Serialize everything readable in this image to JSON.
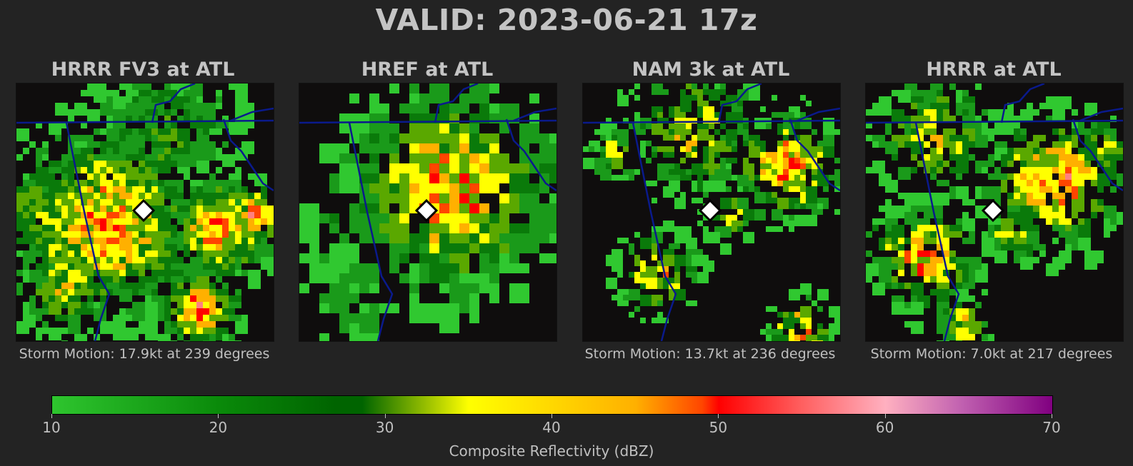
{
  "title": "VALID: 2023-06-21 17z",
  "panels": [
    {
      "title": "HRRR FV3 at ATL",
      "motion": "Storm Motion: 17.9kt at 239 degrees",
      "coverage": "widespread-strong"
    },
    {
      "title": "HREF at ATL",
      "motion": "",
      "coverage": "widespread-weak"
    },
    {
      "title": "NAM 3k at ATL",
      "motion": "Storm Motion: 13.7kt at 236 degrees",
      "coverage": "scattered"
    },
    {
      "title": "HRRR at ATL",
      "motion": "Storm Motion: 7.0kt at 217 degrees",
      "coverage": "banded"
    }
  ],
  "colorbar": {
    "label": "Composite Reflectivity (dBZ)",
    "ticks": [
      "10",
      "20",
      "30",
      "40",
      "50",
      "60",
      "70"
    ],
    "range": [
      10,
      70
    ],
    "colors": [
      "#2ec52e",
      "#006400",
      "#ffff00",
      "#ffa500",
      "#ff0000",
      "#ffb0c0",
      "#800080"
    ]
  },
  "style": {
    "background": "#232323",
    "map_background": "#0f0d0d",
    "border_color": "#0a1a8c",
    "marker_color": "#ffffff"
  }
}
